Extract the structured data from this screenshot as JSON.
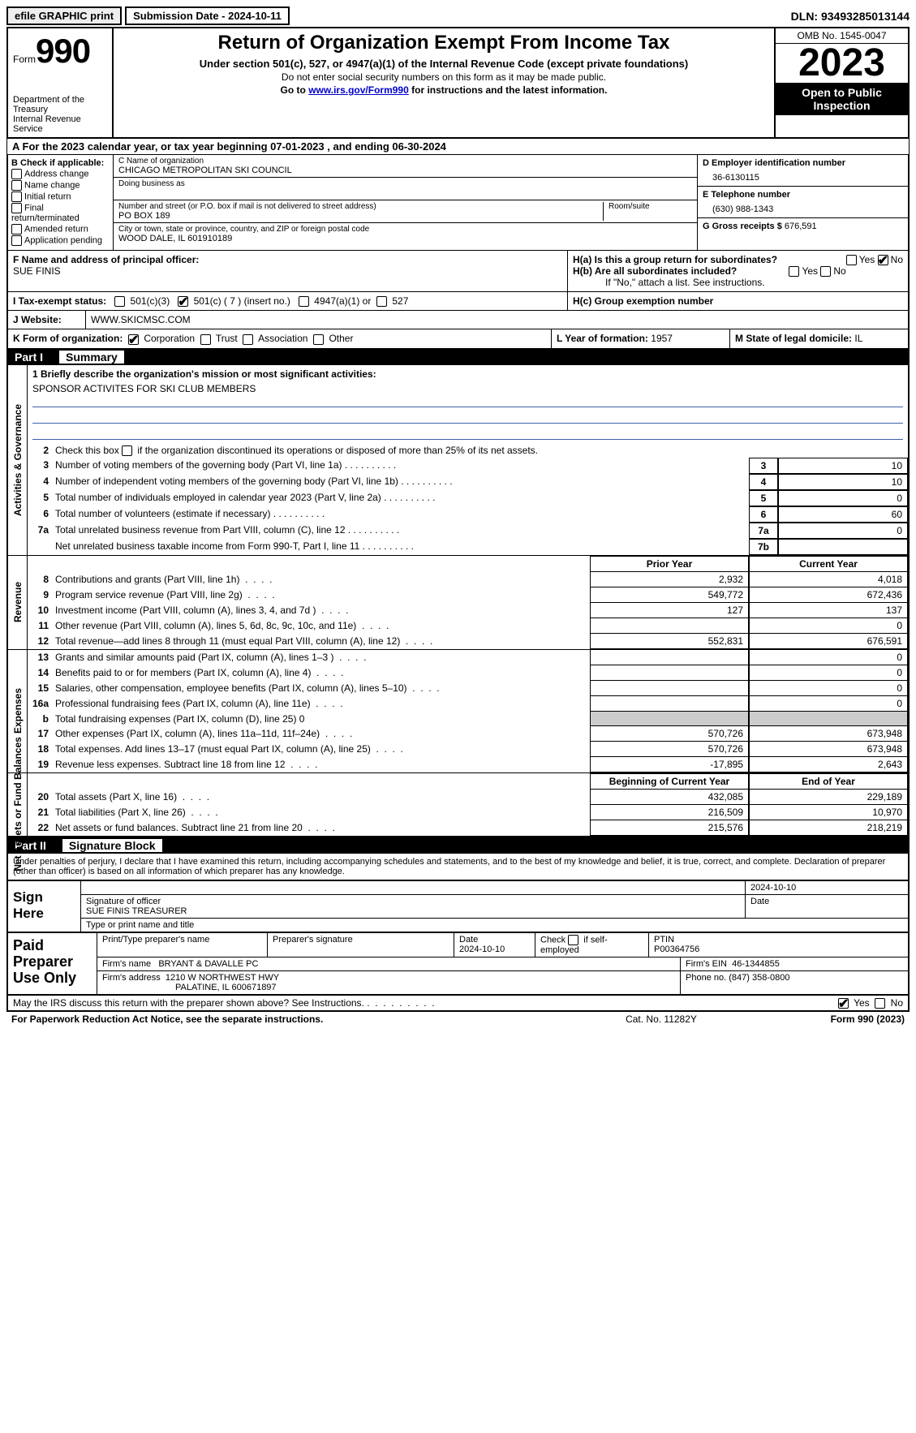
{
  "colors": {
    "link": "#0000cc",
    "rule": "#4060aa",
    "gray": "#cccccc"
  },
  "topbar": {
    "efile": "efile GRAPHIC print",
    "submission": "Submission Date - 2024-10-11",
    "dln": "DLN: 93493285013144"
  },
  "header": {
    "form_word": "Form",
    "form_num": "990",
    "dept": "Department of the Treasury",
    "irs": "Internal Revenue Service",
    "title": "Return of Organization Exempt From Income Tax",
    "sub": "Under section 501(c), 527, or 4947(a)(1) of the Internal Revenue Code (except private foundations)",
    "sub2": "Do not enter social security numbers on this form as it may be made public.",
    "sub3_pre": "Go to ",
    "sub3_link": "www.irs.gov/Form990",
    "sub3_post": " for instructions and the latest information.",
    "omb": "OMB No. 1545-0047",
    "year": "2023",
    "open": "Open to Public Inspection"
  },
  "rowA": "A For the 2023 calendar year, or tax year beginning 07-01-2023    , and ending 06-30-2024",
  "colB": {
    "label": "B Check if applicable:",
    "items": [
      "Address change",
      "Name change",
      "Initial return",
      "Final return/terminated",
      "Amended return",
      "Application pending"
    ]
  },
  "colC": {
    "name_lbl": "C Name of organization",
    "name": "CHICAGO METROPOLITAN SKI COUNCIL",
    "dba_lbl": "Doing business as",
    "street_lbl": "Number and street (or P.O. box if mail is not delivered to street address)",
    "room_lbl": "Room/suite",
    "street": "PO BOX 189",
    "city_lbl": "City or town, state or province, country, and ZIP or foreign postal code",
    "city": "WOOD DALE, IL  601910189"
  },
  "colD": {
    "ein_lbl": "D Employer identification number",
    "ein": "36-6130115",
    "phone_lbl": "E Telephone number",
    "phone": "(630) 988-1343",
    "gross_lbl": "G Gross receipts $",
    "gross": "676,591"
  },
  "rowF": {
    "lbl": "F  Name and address of principal officer:",
    "name": "SUE FINIS"
  },
  "rowH": {
    "ha": "H(a)  Is this a group return for subordinates?",
    "hb": "H(b)  Are all subordinates included?",
    "hb_note": "If \"No,\" attach a list. See instructions.",
    "hc": "H(c)  Group exemption number",
    "yes": "Yes",
    "no": "No"
  },
  "exempt": {
    "lbl": "I   Tax-exempt status:",
    "c3": "501(c)(3)",
    "c": "501(c) ( 7 ) (insert no.)",
    "a4947": "4947(a)(1) or",
    "s527": "527"
  },
  "website": {
    "lbl": "J   Website:",
    "val": "WWW.SKICMSC.COM"
  },
  "korg": {
    "lbl": "K Form of organization:",
    "opts": [
      "Corporation",
      "Trust",
      "Association",
      "Other"
    ],
    "year_lbl": "L Year of formation:",
    "year": "1957",
    "state_lbl": "M State of legal domicile:",
    "state": "IL"
  },
  "partI": {
    "num": "Part I",
    "title": "Summary"
  },
  "mission": {
    "lbl": "1   Briefly describe the organization's mission or most significant activities:",
    "val": "SPONSOR ACTIVITES FOR SKI CLUB MEMBERS"
  },
  "line2": "Check this box      if the organization discontinued its operations or disposed of more than 25% of its net assets.",
  "gov_lines": [
    {
      "n": "3",
      "t": "Number of voting members of the governing body (Part VI, line 1a)",
      "bn": "3",
      "v": "10"
    },
    {
      "n": "4",
      "t": "Number of independent voting members of the governing body (Part VI, line 1b)",
      "bn": "4",
      "v": "10"
    },
    {
      "n": "5",
      "t": "Total number of individuals employed in calendar year 2023 (Part V, line 2a)",
      "bn": "5",
      "v": "0"
    },
    {
      "n": "6",
      "t": "Total number of volunteers (estimate if necessary)",
      "bn": "6",
      "v": "60"
    },
    {
      "n": "7a",
      "t": "Total unrelated business revenue from Part VIII, column (C), line 12",
      "bn": "7a",
      "v": "0"
    },
    {
      "n": "",
      "t": "Net unrelated business taxable income from Form 990-T, Part I, line 11",
      "bn": "7b",
      "v": ""
    }
  ],
  "col_hdrs": {
    "prior": "Prior Year",
    "current": "Current Year",
    "bcy": "Beginning of Current Year",
    "eoy": "End of Year"
  },
  "rev_lines": [
    {
      "n": "8",
      "t": "Contributions and grants (Part VIII, line 1h)",
      "p": "2,932",
      "c": "4,018"
    },
    {
      "n": "9",
      "t": "Program service revenue (Part VIII, line 2g)",
      "p": "549,772",
      "c": "672,436"
    },
    {
      "n": "10",
      "t": "Investment income (Part VIII, column (A), lines 3, 4, and 7d )",
      "p": "127",
      "c": "137"
    },
    {
      "n": "11",
      "t": "Other revenue (Part VIII, column (A), lines 5, 6d, 8c, 9c, 10c, and 11e)",
      "p": "",
      "c": "0"
    },
    {
      "n": "12",
      "t": "Total revenue—add lines 8 through 11 (must equal Part VIII, column (A), line 12)",
      "p": "552,831",
      "c": "676,591"
    }
  ],
  "exp_lines": [
    {
      "n": "13",
      "t": "Grants and similar amounts paid (Part IX, column (A), lines 1–3 )",
      "p": "",
      "c": "0"
    },
    {
      "n": "14",
      "t": "Benefits paid to or for members (Part IX, column (A), line 4)",
      "p": "",
      "c": "0"
    },
    {
      "n": "15",
      "t": "Salaries, other compensation, employee benefits (Part IX, column (A), lines 5–10)",
      "p": "",
      "c": "0"
    },
    {
      "n": "16a",
      "t": "Professional fundraising fees (Part IX, column (A), line 11e)",
      "p": "",
      "c": "0"
    },
    {
      "n": "b",
      "t": "Total fundraising expenses (Part IX, column (D), line 25) 0",
      "p": "gray",
      "c": "gray"
    },
    {
      "n": "17",
      "t": "Other expenses (Part IX, column (A), lines 11a–11d, 11f–24e)",
      "p": "570,726",
      "c": "673,948"
    },
    {
      "n": "18",
      "t": "Total expenses. Add lines 13–17 (must equal Part IX, column (A), line 25)",
      "p": "570,726",
      "c": "673,948"
    },
    {
      "n": "19",
      "t": "Revenue less expenses. Subtract line 18 from line 12",
      "p": "-17,895",
      "c": "2,643"
    }
  ],
  "na_lines": [
    {
      "n": "20",
      "t": "Total assets (Part X, line 16)",
      "p": "432,085",
      "c": "229,189"
    },
    {
      "n": "21",
      "t": "Total liabilities (Part X, line 26)",
      "p": "216,509",
      "c": "10,970"
    },
    {
      "n": "22",
      "t": "Net assets or fund balances. Subtract line 21 from line 20",
      "p": "215,576",
      "c": "218,219"
    }
  ],
  "vlabels": {
    "gov": "Activities & Governance",
    "rev": "Revenue",
    "exp": "Expenses",
    "na": "Net Assets or Fund Balances"
  },
  "partII": {
    "num": "Part II",
    "title": "Signature Block"
  },
  "sig_text": "Under penalties of perjury, I declare that I have examined this return, including accompanying schedules and statements, and to the best of my knowledge and belief, it is true, correct, and complete. Declaration of preparer (other than officer) is based on all information of which preparer has any knowledge.",
  "sign": {
    "here": "Sign Here",
    "date": "2024-10-10",
    "sig_lbl": "Signature of officer",
    "officer": "SUE FINIS  TREASURER",
    "type_lbl": "Type or print name and title",
    "date_lbl": "Date"
  },
  "paid": {
    "lbl": "Paid Preparer Use Only",
    "h1": "Print/Type preparer's name",
    "h2": "Preparer's signature",
    "h3": "Date",
    "h3v": "2024-10-10",
    "h4": "Check       if self-employed",
    "h5": "PTIN",
    "h5v": "P00364756",
    "firm_lbl": "Firm's name",
    "firm": "BRYANT & DAVALLE PC",
    "ein_lbl": "Firm's EIN",
    "ein": "46-1344855",
    "addr_lbl": "Firm's address",
    "addr1": "1210 W NORTHWEST HWY",
    "addr2": "PALATINE, IL  600671897",
    "phone_lbl": "Phone no.",
    "phone": "(847) 358-0800"
  },
  "discuss": {
    "txt": "May the IRS discuss this return with the preparer shown above? See Instructions.",
    "yes": "Yes",
    "no": "No"
  },
  "footer": {
    "l": "For Paperwork Reduction Act Notice, see the separate instructions.",
    "c": "Cat. No. 11282Y",
    "r": "Form 990 (2023)"
  }
}
